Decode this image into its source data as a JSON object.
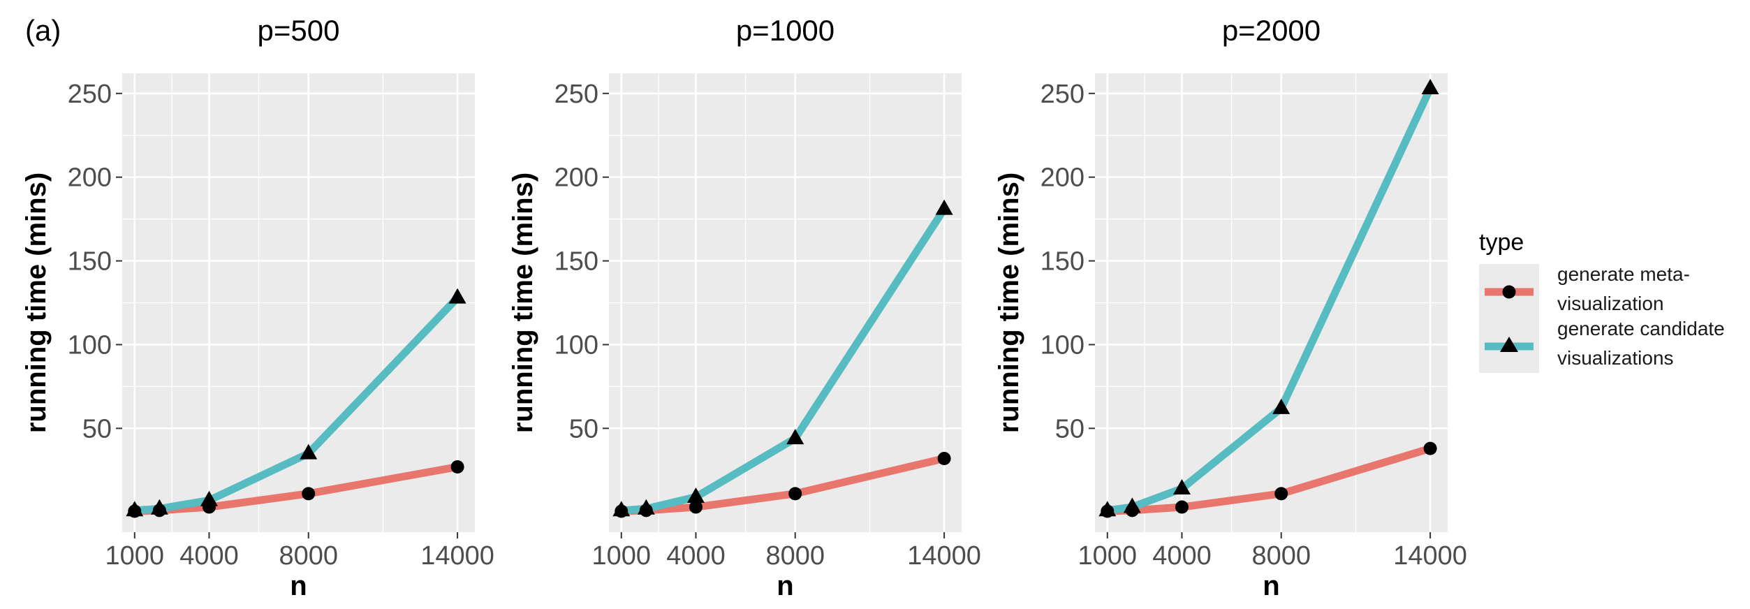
{
  "panel_label": "(a)",
  "colors": {
    "panel_background": "#ebebeb",
    "grid": "#ffffff",
    "meta_line": "#e8766d",
    "candidate_line": "#56bcc2",
    "marker": "#000000",
    "tick_text": "#4d4d4d"
  },
  "legend": {
    "title": "type",
    "placement": "right",
    "items": [
      {
        "label_line1": "generate meta-",
        "label_line2": "visualization",
        "marker": "circle"
      },
      {
        "label_line1": "generate candidate",
        "label_line2": "visualizations",
        "marker": "triangle"
      }
    ]
  },
  "chart_data": [
    {
      "type": "line",
      "title": "p=500",
      "xlabel": "n",
      "ylabel": "running time (mins)",
      "x": [
        1000,
        2000,
        4000,
        8000,
        14000
      ],
      "x_ticks": [
        1000,
        4000,
        8000,
        14000
      ],
      "y_ticks": [
        50,
        100,
        150,
        200,
        250
      ],
      "xlim": [
        500,
        14700
      ],
      "ylim": [
        -12,
        262
      ],
      "grid": true,
      "series": [
        {
          "name": "generate meta-visualization",
          "marker": "circle",
          "values": [
            0.5,
            1,
            3,
            11,
            27
          ]
        },
        {
          "name": "generate candidate visualizations",
          "marker": "triangle",
          "values": [
            1,
            2,
            7,
            35,
            128
          ]
        }
      ]
    },
    {
      "type": "line",
      "title": "p=1000",
      "xlabel": "n",
      "ylabel": "running time (mins)",
      "x": [
        1000,
        2000,
        4000,
        8000,
        14000
      ],
      "x_ticks": [
        1000,
        4000,
        8000,
        14000
      ],
      "y_ticks": [
        50,
        100,
        150,
        200,
        250
      ],
      "xlim": [
        500,
        14700
      ],
      "ylim": [
        -12,
        262
      ],
      "grid": true,
      "series": [
        {
          "name": "generate meta-visualization",
          "marker": "circle",
          "values": [
            0.5,
            1,
            3,
            11,
            32
          ]
        },
        {
          "name": "generate candidate visualizations",
          "marker": "triangle",
          "values": [
            1,
            2,
            9,
            44,
            181
          ]
        }
      ]
    },
    {
      "type": "line",
      "title": "p=2000",
      "xlabel": "n",
      "ylabel": "running time (mins)",
      "x": [
        1000,
        2000,
        4000,
        8000,
        14000
      ],
      "x_ticks": [
        1000,
        4000,
        8000,
        14000
      ],
      "y_ticks": [
        50,
        100,
        150,
        200,
        250
      ],
      "xlim": [
        500,
        14700
      ],
      "ylim": [
        -12,
        262
      ],
      "grid": true,
      "series": [
        {
          "name": "generate meta-visualization",
          "marker": "circle",
          "values": [
            0.5,
            1,
            3,
            11,
            38
          ]
        },
        {
          "name": "generate candidate visualizations",
          "marker": "triangle",
          "values": [
            1,
            3,
            14,
            62,
            253
          ]
        }
      ]
    }
  ]
}
